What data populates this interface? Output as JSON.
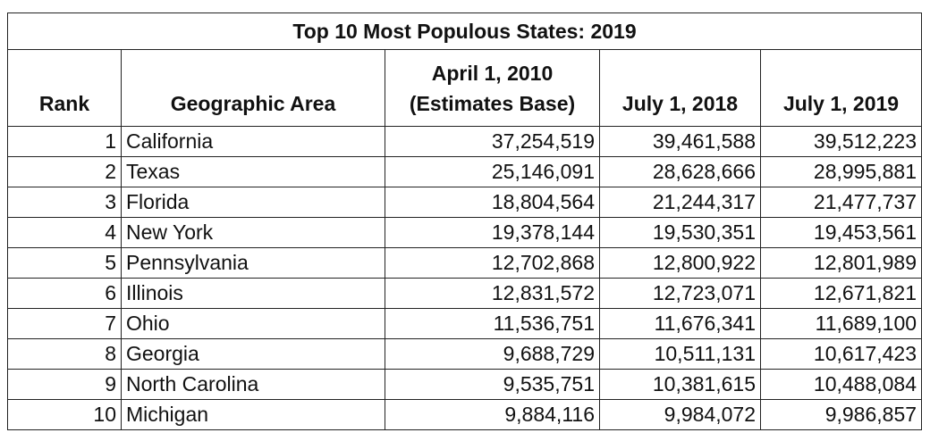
{
  "table": {
    "title": "Top 10 Most Populous States: 2019",
    "headers": {
      "rank": "Rank",
      "area": "Geographic Area",
      "base_line1": "April 1, 2010",
      "base_line2": "(Estimates Base)",
      "y2018": "July 1, 2018",
      "y2019": "July 1, 2019"
    },
    "rows": [
      {
        "rank": "1",
        "area": "California",
        "base": "37,254,519",
        "y2018": "39,461,588",
        "y2019": "39,512,223"
      },
      {
        "rank": "2",
        "area": "Texas",
        "base": "25,146,091",
        "y2018": "28,628,666",
        "y2019": "28,995,881"
      },
      {
        "rank": "3",
        "area": "Florida",
        "base": "18,804,564",
        "y2018": "21,244,317",
        "y2019": "21,477,737"
      },
      {
        "rank": "4",
        "area": "New York",
        "base": "19,378,144",
        "y2018": "19,530,351",
        "y2019": "19,453,561"
      },
      {
        "rank": "5",
        "area": "Pennsylvania",
        "base": "12,702,868",
        "y2018": "12,800,922",
        "y2019": "12,801,989"
      },
      {
        "rank": "6",
        "area": "Illinois",
        "base": "12,831,572",
        "y2018": "12,723,071",
        "y2019": "12,671,821"
      },
      {
        "rank": "7",
        "area": "Ohio",
        "base": "11,536,751",
        "y2018": "11,676,341",
        "y2019": "11,689,100"
      },
      {
        "rank": "8",
        "area": "Georgia",
        "base": "9,688,729",
        "y2018": "10,511,131",
        "y2019": "10,617,423"
      },
      {
        "rank": "9",
        "area": "North Carolina",
        "base": "9,535,751",
        "y2018": "10,381,615",
        "y2019": "10,488,084"
      },
      {
        "rank": "10",
        "area": "Michigan",
        "base": "9,884,116",
        "y2018": "9,984,072",
        "y2019": "9,986,857"
      }
    ]
  }
}
